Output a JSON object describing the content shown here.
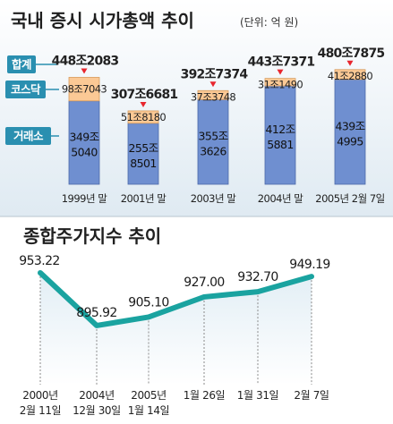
{
  "chart_data": [
    {
      "type": "bar",
      "title": "국내 증시 시가총액 추이",
      "unit": "(단위: 억 원)",
      "legend": [
        "합계",
        "코스닥",
        "거래소"
      ],
      "categories": [
        "1999년 말",
        "2001년 말",
        "2003년 말",
        "2004년 말",
        "2005년 2월 7일"
      ],
      "totals": [
        "448조2083",
        "307조6681",
        "392조7374",
        "443조7371",
        "480조7875"
      ],
      "kosdaq_labels": [
        "98조7043",
        "51조8180",
        "37조3748",
        "31조1490",
        "41조2880"
      ],
      "exchange_labels": [
        [
          "349조",
          "5040"
        ],
        [
          "255조",
          "8501"
        ],
        [
          "355조",
          "3626"
        ],
        [
          "412조",
          "5881"
        ],
        [
          "439조",
          "4995"
        ]
      ],
      "series": [
        {
          "name": "코스닥",
          "values": [
            987043,
            518180,
            373748,
            311490,
            412880
          ]
        },
        {
          "name": "거래소",
          "values": [
            3495040,
            2558501,
            3553626,
            4125881,
            4394995
          ]
        }
      ],
      "colors": {
        "kosdaq": "#fbc995",
        "exchange": "#6f8fd0",
        "legend": "#2a8fb0",
        "marker": "#e8262e",
        "section_bg": "#e6f0f6"
      }
    },
    {
      "type": "line",
      "title": "종합주가지수 추이",
      "x_labels": [
        [
          "2000년",
          "2월 11일"
        ],
        [
          "2004년",
          "12월 30일"
        ],
        [
          "2005년",
          "1월 14일"
        ],
        [
          "1월 26일"
        ],
        [
          "1월 31일"
        ],
        [
          "2월 7일"
        ]
      ],
      "point_labels": [
        "953.22",
        "895.92",
        "905.10",
        "927.00",
        "932.70",
        "949.19"
      ],
      "values": [
        953.22,
        895.92,
        905.1,
        927.0,
        932.7,
        949.19
      ],
      "colors": {
        "line": "#1aa3a0"
      }
    }
  ]
}
